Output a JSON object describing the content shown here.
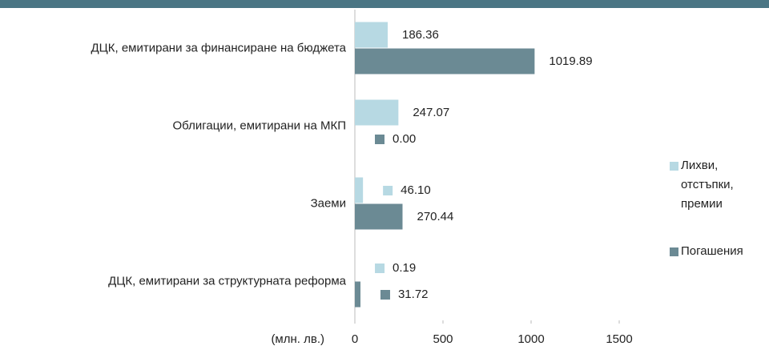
{
  "chart_data": {
    "type": "barh",
    "categories": [
      "ДЦК, емитирани за финансиране на бюджета",
      "Облигации, емитирани на МКП",
      "Заеми",
      "ДЦК, емитирани за структурната реформа"
    ],
    "series": [
      {
        "name": "Лихви, отстъпки, премии",
        "color": "#b7d9e3",
        "values": [
          186.36,
          247.07,
          46.1,
          0.19
        ],
        "value_labels": [
          "186.36",
          "247.07",
          "46.10",
          "0.19"
        ]
      },
      {
        "name": "Погашения",
        "color": "#6b8a94",
        "values": [
          1019.89,
          0,
          270.44,
          31.72
        ],
        "value_labels": [
          "1019.89",
          "0.00",
          "270.44",
          "31.72"
        ]
      }
    ],
    "x_label": "(млн. лв.)",
    "xlim": [
      0,
      1500
    ],
    "xticks": [
      0,
      500,
      1000,
      1500
    ],
    "legend": "right"
  }
}
